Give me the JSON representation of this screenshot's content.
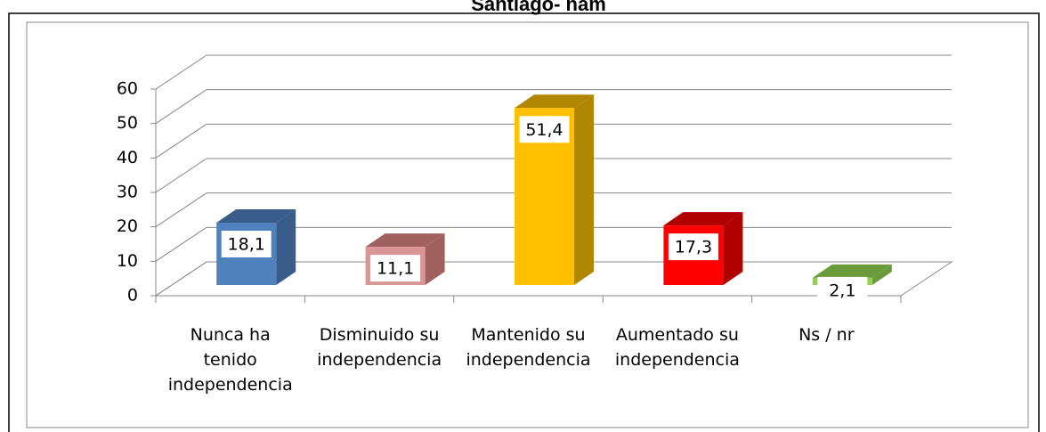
{
  "chart_data": {
    "type": "bar3d",
    "title": "Santiago- nam",
    "categories": [
      "Nunca ha tenido independencia",
      "Disminuido su independencia",
      "Mantenido su independencia",
      "Aumentado su independencia",
      "Ns / nr"
    ],
    "values": [
      18.1,
      11.1,
      51.4,
      17.3,
      2.1
    ],
    "value_labels": [
      "18,1",
      "11,1",
      "51,4",
      "17,3",
      "2,1"
    ],
    "colors": [
      "#4f81bd",
      "#d99694",
      "#ffc000",
      "#ff0000",
      "#92d050"
    ],
    "side_colors": [
      "#385d8a",
      "#a0605e",
      "#b08600",
      "#b00000",
      "#6a9a3a"
    ],
    "ylim": [
      0,
      60
    ],
    "yticks": [
      0,
      10,
      20,
      30,
      40,
      50,
      60
    ],
    "grid": true
  }
}
